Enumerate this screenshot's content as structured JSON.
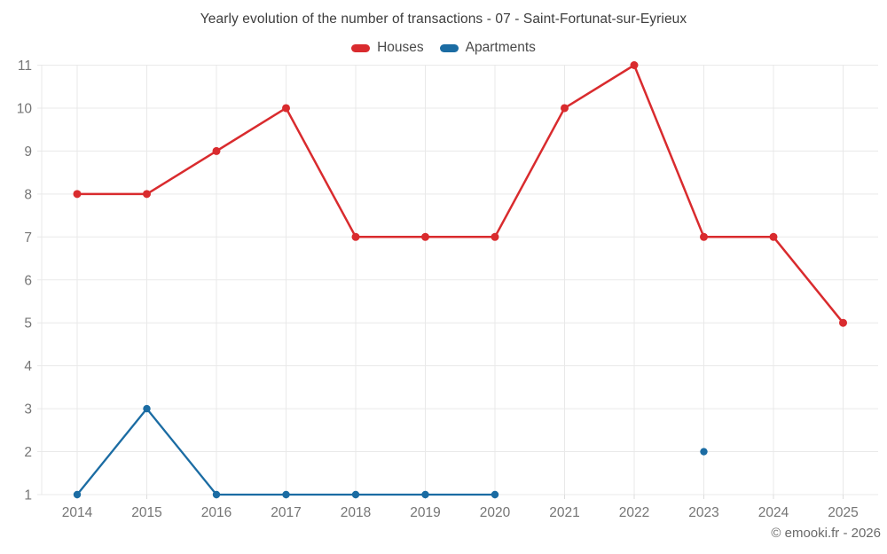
{
  "watermark": "© emooki.fr - 2026",
  "chart_data": {
    "type": "line",
    "title": "Yearly evolution of the number of transactions - 07 - Saint-Fortunat-sur-Eyrieux",
    "xlabel": "",
    "ylabel": "",
    "categories": [
      "2014",
      "2015",
      "2016",
      "2017",
      "2018",
      "2019",
      "2020",
      "2021",
      "2022",
      "2023",
      "2024",
      "2025"
    ],
    "series": [
      {
        "name": "Houses",
        "color": "#d92b2e",
        "values": [
          8,
          8,
          9,
          10,
          7,
          7,
          7,
          10,
          11,
          7,
          7,
          5
        ]
      },
      {
        "name": "Apartments",
        "color": "#1b6ca3",
        "values": [
          1,
          3,
          1,
          1,
          1,
          1,
          1,
          null,
          null,
          2,
          null,
          null
        ]
      }
    ],
    "ylim": [
      1,
      11
    ],
    "yticks": [
      1,
      2,
      3,
      4,
      5,
      6,
      7,
      8,
      9,
      10,
      11
    ],
    "grid": true,
    "legend_position": "top"
  }
}
